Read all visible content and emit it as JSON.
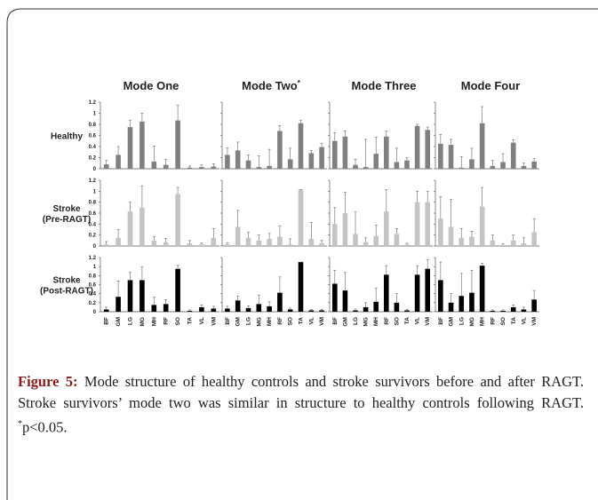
{
  "chart_data": {
    "type": "bar",
    "column_titles": [
      "Mode One",
      "Mode Two",
      "Mode Three",
      "Mode Four"
    ],
    "column_title_markers": [
      "",
      "*",
      "",
      ""
    ],
    "categories": [
      "BF",
      "GM",
      "LG",
      "MG",
      "MH",
      "RF",
      "SO",
      "TA",
      "VL",
      "VM"
    ],
    "ylim": [
      0,
      1.2
    ],
    "yticks": [
      0,
      0.2,
      0.4,
      0.6,
      0.8,
      1,
      1.2
    ],
    "series": [
      {
        "name": "Healthy",
        "color": "#808080",
        "values": [
          [
            0.08,
            0.25,
            0.75,
            0.85,
            0.13,
            0.07,
            0.87,
            0.02,
            0.03,
            0.04
          ],
          [
            0.25,
            0.33,
            0.15,
            0.03,
            0.05,
            0.68,
            0.17,
            0.82,
            0.28,
            0.39
          ],
          [
            0.5,
            0.58,
            0.07,
            0.03,
            0.27,
            0.58,
            0.12,
            0.15,
            0.77,
            0.7
          ],
          [
            0.45,
            0.43,
            0.02,
            0.17,
            0.82,
            0.05,
            0.12,
            0.47,
            0.05,
            0.13
          ]
        ],
        "errors": [
          [
            0.07,
            0.15,
            0.12,
            0.15,
            0.28,
            0.1,
            0.27,
            0.03,
            0.04,
            0.05
          ],
          [
            0.13,
            0.15,
            0.1,
            0.2,
            0.3,
            0.1,
            0.2,
            0.05,
            0.05,
            0.07
          ],
          [
            0.15,
            0.1,
            0.1,
            0.5,
            0.3,
            0.1,
            0.25,
            0.05,
            0.03,
            0.05
          ],
          [
            0.17,
            0.1,
            0.2,
            0.2,
            0.3,
            0.1,
            0.15,
            0.05,
            0.05,
            0.05
          ]
        ]
      },
      {
        "name": "Stroke (Pre-RAGT)",
        "color": "#c4c4c4",
        "values": [
          [
            0.03,
            0.15,
            0.63,
            0.7,
            0.1,
            0.07,
            0.95,
            0.05,
            0.03,
            0.15
          ],
          [
            0.03,
            0.35,
            0.15,
            0.1,
            0.13,
            0.17,
            0.03,
            1.03,
            0.13,
            0.05
          ],
          [
            0.4,
            0.6,
            0.22,
            0.07,
            0.18,
            0.63,
            0.22,
            0.03,
            0.8,
            0.8
          ],
          [
            0.5,
            0.35,
            0.15,
            0.17,
            0.72,
            0.1,
            0.02,
            0.1,
            0.05,
            0.25
          ]
        ],
        "errors": [
          [
            0.05,
            0.15,
            0.17,
            0.4,
            0.07,
            0.07,
            0.12,
            0.05,
            0.03,
            0.17
          ],
          [
            0.03,
            0.3,
            0.1,
            0.1,
            0.1,
            0.2,
            0.1,
            0,
            0.3,
            0.05
          ],
          [
            0.3,
            0.38,
            0.4,
            0.08,
            0.2,
            0.4,
            0.1,
            0.02,
            0.2,
            0.2
          ],
          [
            0.4,
            0.5,
            0.17,
            0.1,
            0.35,
            0.1,
            0.02,
            0.1,
            0.1,
            0.25
          ]
        ]
      },
      {
        "name": "Stroke (Post-RAGT)",
        "color": "#000000",
        "values": [
          [
            0.05,
            0.33,
            0.7,
            0.7,
            0.15,
            0.17,
            0.95,
            0.02,
            0.1,
            0.07
          ],
          [
            0.07,
            0.25,
            0.08,
            0.17,
            0.12,
            0.42,
            0.05,
            1.1,
            0.03,
            0.03
          ],
          [
            0.62,
            0.47,
            0.03,
            0.1,
            0.22,
            0.82,
            0.2,
            0.03,
            0.82,
            0.95
          ],
          [
            0.7,
            0.2,
            0.35,
            0.42,
            1.02,
            0.02,
            0.02,
            0.1,
            0.05,
            0.27
          ]
        ],
        "errors": [
          [
            0.05,
            0.35,
            0.17,
            0.3,
            0.17,
            0.1,
            0.08,
            0.02,
            0.05,
            0.05
          ],
          [
            0.05,
            0.1,
            0.05,
            0.2,
            0.1,
            0.35,
            0.03,
            0,
            0.02,
            0.02
          ],
          [
            0.3,
            0.4,
            0.03,
            0.1,
            0.3,
            0.2,
            0.2,
            0.02,
            0.2,
            0.2
          ],
          [
            0.4,
            0.2,
            0.5,
            0.5,
            0.05,
            0.02,
            0.02,
            0.05,
            0.05,
            0.2
          ]
        ]
      }
    ]
  },
  "caption": {
    "label": "Figure 5:",
    "text": "Mode structure of healthy controls and stroke survivors before and after RAGT. Stroke survivors’ mode two was similar in structure to healthy controls following RAGT.",
    "marker": "*",
    "note": "p<0.05."
  }
}
